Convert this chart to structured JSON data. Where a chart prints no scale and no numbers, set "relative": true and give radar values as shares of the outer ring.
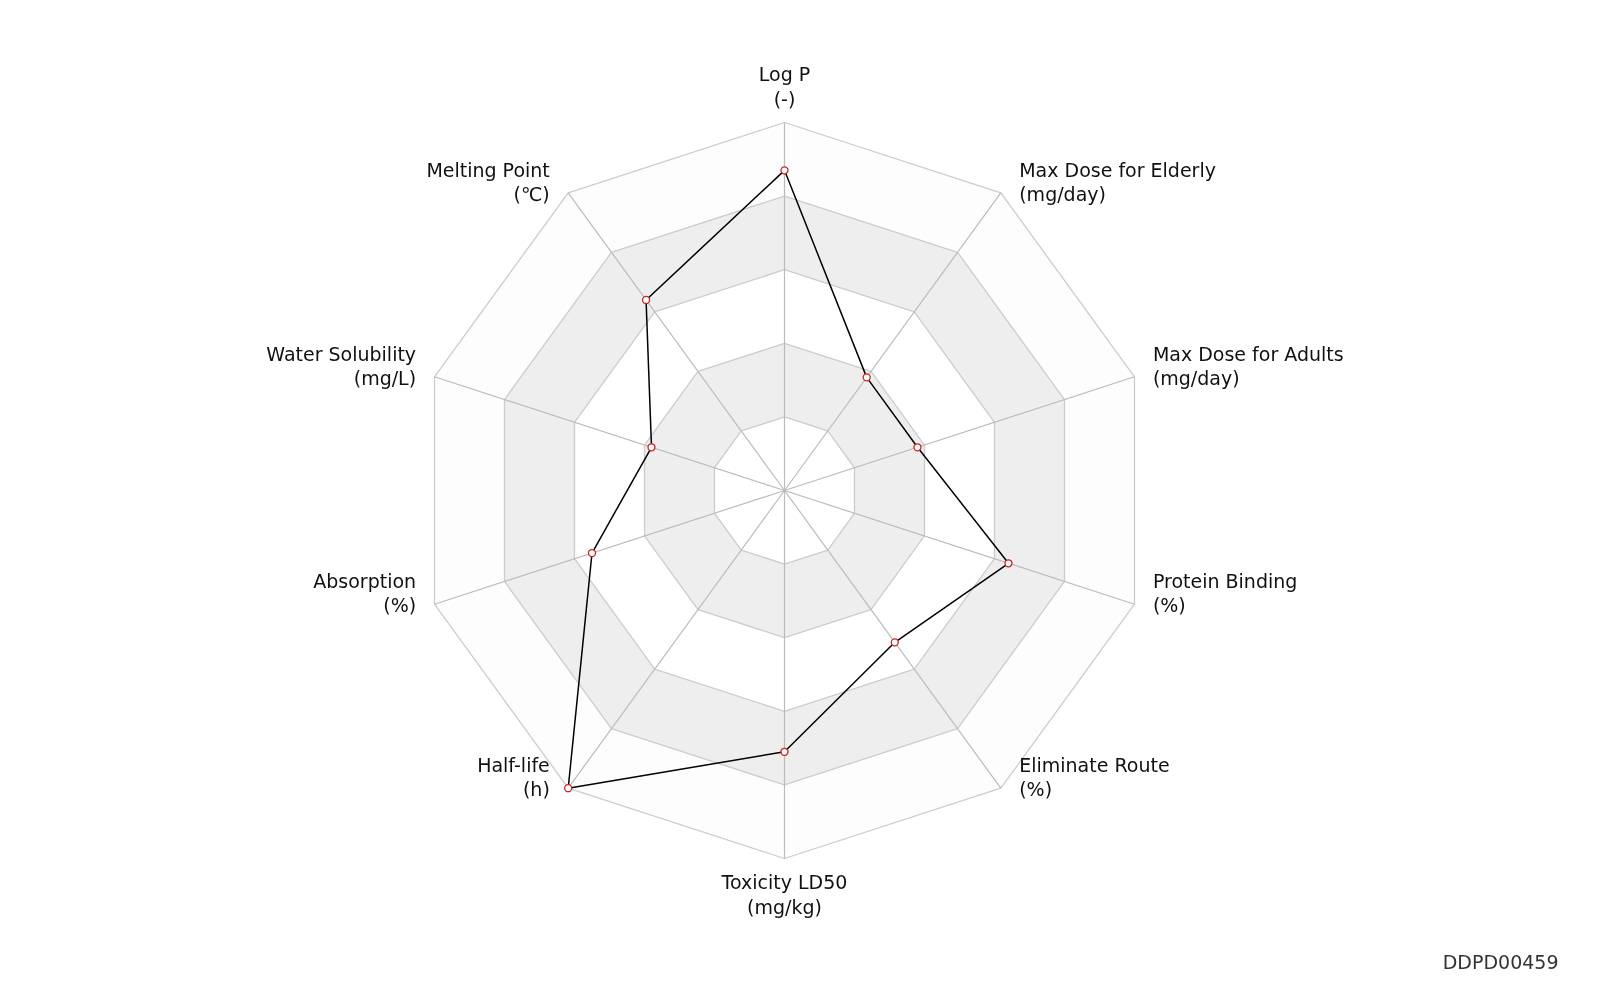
{
  "chart_data": {
    "type": "radar",
    "relative": true,
    "marker": "circle",
    "categories": [
      "Log P\n(-)",
      "Max Dose for Elderly\n(mg/day)",
      "Max Dose for Adults\n(mg/day)",
      "Protein Binding\n(%)",
      "Eliminate Route\n(%)",
      "Toxicity LD50\n(mg/kg)",
      "Half-life\n(h)",
      "Absorption\n(%)",
      "Water Solubility\n(mg/L)",
      "Melting Point\n(℃)"
    ],
    "series": [
      {
        "color": "#000000",
        "values": [
          0.87,
          0.38,
          0.38,
          0.64,
          0.51,
          0.71,
          1.0,
          0.55,
          0.38,
          0.64
        ]
      }
    ],
    "annotations": [
      "DDPD00459"
    ]
  }
}
